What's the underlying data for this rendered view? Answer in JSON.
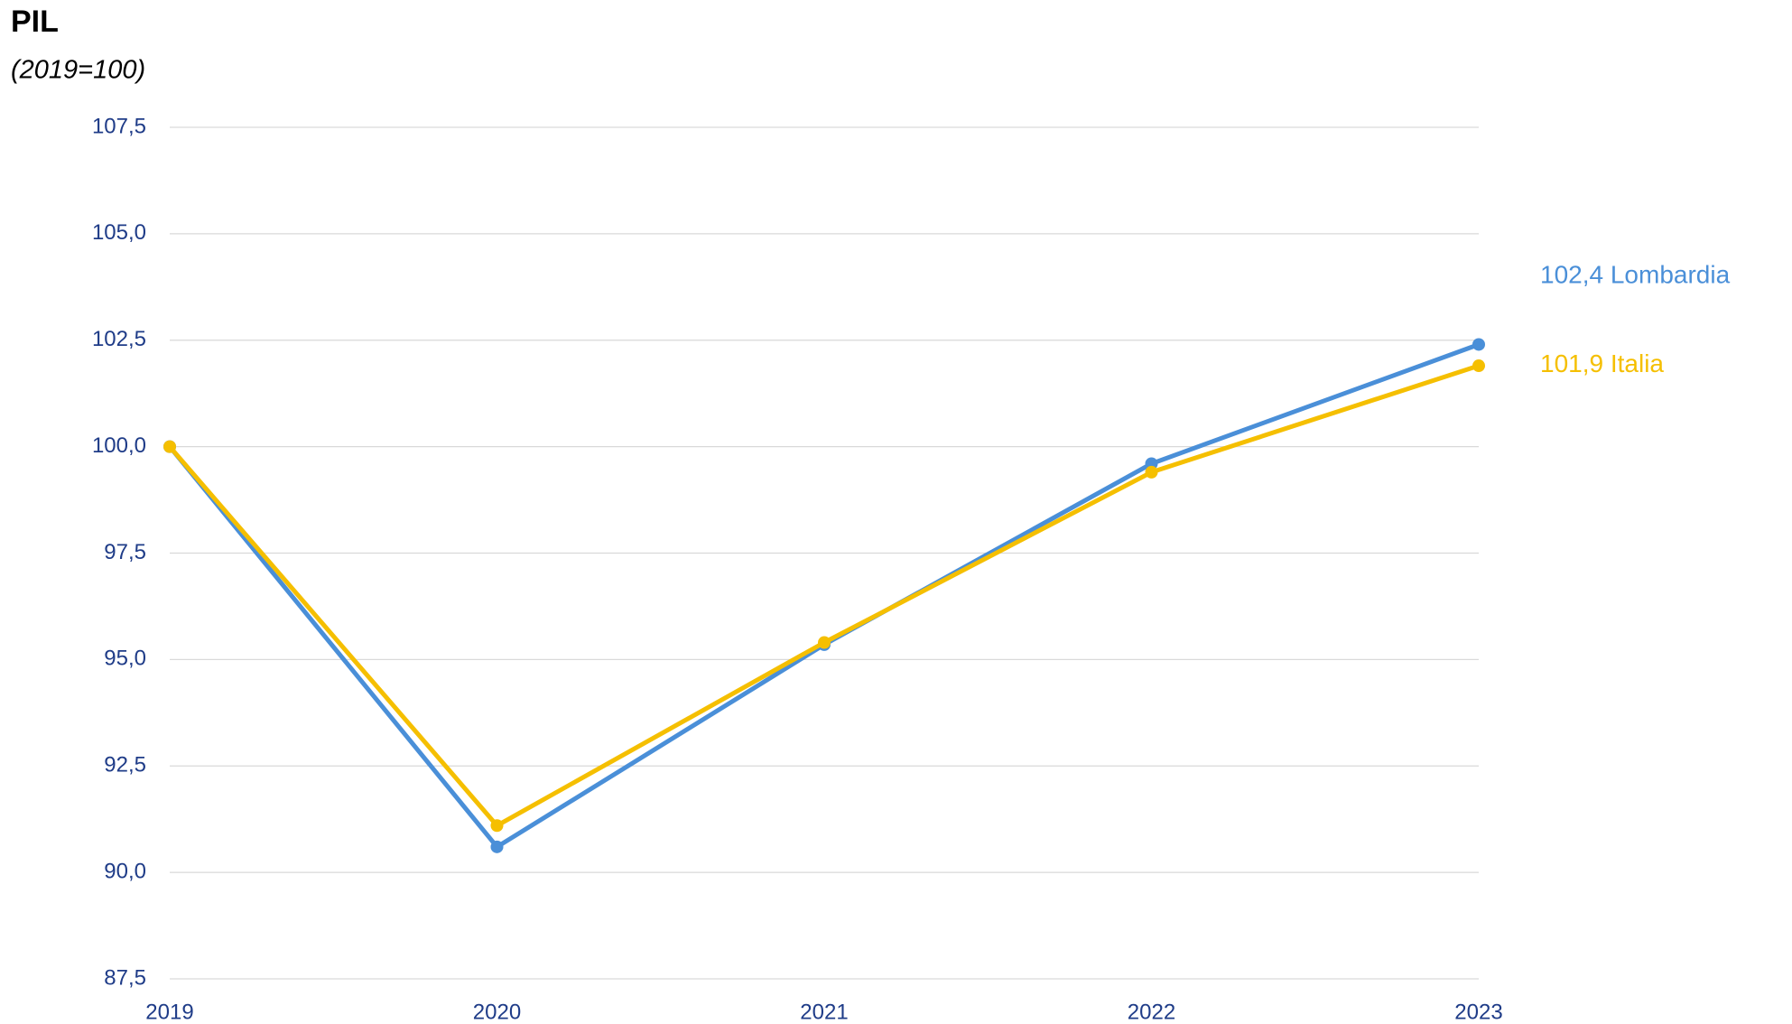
{
  "chart_data": {
    "type": "line",
    "title": "PIL",
    "subtitle": "(2019=100)",
    "categories": [
      "2019",
      "2020",
      "2021",
      "2022",
      "2023"
    ],
    "series": [
      {
        "name": "Lombardia",
        "color": "#4a8fd8",
        "values": [
          100,
          90.6,
          95.35,
          99.6,
          102.4
        ],
        "value_labels": [
          null,
          null,
          null,
          null,
          "102,4"
        ]
      },
      {
        "name": "Italia",
        "color": "#f5bf00",
        "values": [
          100,
          91.1,
          95.4,
          99.4,
          101.9
        ],
        "value_labels": [
          null,
          null,
          null,
          null,
          "101,9"
        ]
      }
    ],
    "ylim": [
      87.5,
      107.5
    ],
    "yticks": [
      {
        "value": 87.5,
        "label": "87,5"
      },
      {
        "value": 90,
        "label": "90,0"
      },
      {
        "value": 92.5,
        "label": "92,5"
      },
      {
        "value": 95,
        "label": "95,0"
      },
      {
        "value": 97.5,
        "label": "97,5"
      },
      {
        "value": 100,
        "label": "100,0"
      },
      {
        "value": 102.5,
        "label": "102,5"
      },
      {
        "value": 105,
        "label": "105,0"
      },
      {
        "value": 107.5,
        "label": "107,5"
      }
    ],
    "grid": true
  }
}
